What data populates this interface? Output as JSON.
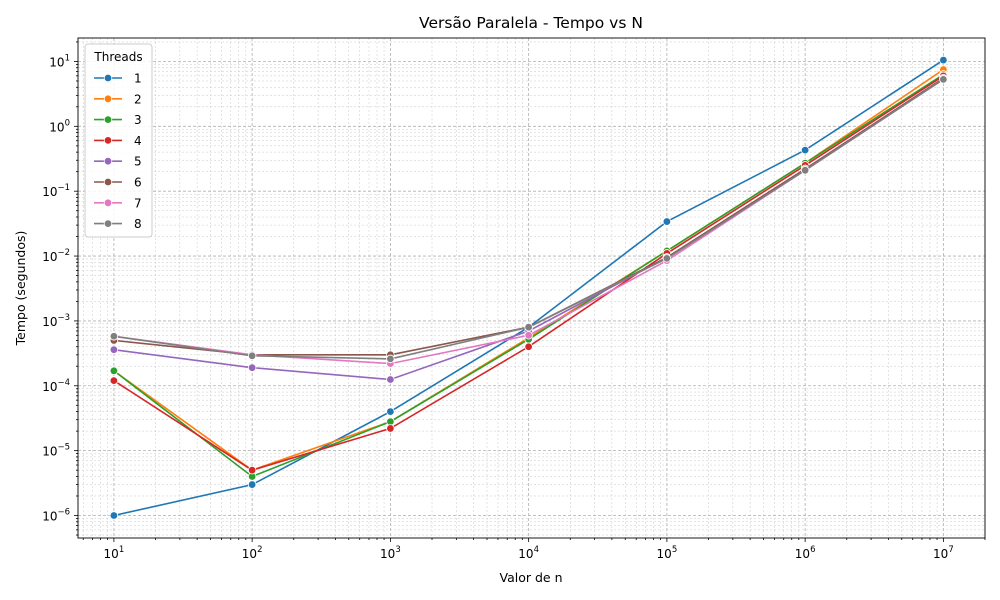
{
  "chart_data": {
    "type": "line",
    "title": "Versão Paralela - Tempo vs N",
    "xlabel": "Valor de n",
    "ylabel": "Tempo (segundos)",
    "xscale": "log",
    "yscale": "log",
    "x": [
      10,
      100,
      1000,
      10000,
      100000,
      1000000,
      10000000
    ],
    "xtick_labels": [
      {
        "base": "10",
        "exp": "1"
      },
      {
        "base": "10",
        "exp": "2"
      },
      {
        "base": "10",
        "exp": "3"
      },
      {
        "base": "10",
        "exp": "4"
      },
      {
        "base": "10",
        "exp": "5"
      },
      {
        "base": "10",
        "exp": "6"
      },
      {
        "base": "10",
        "exp": "7"
      }
    ],
    "ytick_labels": [
      {
        "base": "10",
        "exp": "−6"
      },
      {
        "base": "10",
        "exp": "−5"
      },
      {
        "base": "10",
        "exp": "−4"
      },
      {
        "base": "10",
        "exp": "−3"
      },
      {
        "base": "10",
        "exp": "−2"
      },
      {
        "base": "10",
        "exp": "−1"
      },
      {
        "base": "10",
        "exp": "0"
      },
      {
        "base": "10",
        "exp": "1"
      }
    ],
    "xlim": [
      5.5,
      20000000
    ],
    "ylim": [
      4.5e-07,
      23
    ],
    "grid": true,
    "legend_title": "Threads",
    "legend_position": "top-left",
    "series": [
      {
        "name": "1",
        "color": "#1f77b4",
        "values": [
          1e-06,
          3e-06,
          4e-05,
          0.0008,
          0.034,
          0.43,
          10.5
        ]
      },
      {
        "name": "2",
        "color": "#ff7f0e",
        "values": [
          0.00017,
          5e-06,
          2.8e-05,
          0.00055,
          0.012,
          0.27,
          7.5
        ]
      },
      {
        "name": "3",
        "color": "#2ca02c",
        "values": [
          0.00017,
          4e-06,
          2.8e-05,
          0.00052,
          0.012,
          0.27,
          6.3
        ]
      },
      {
        "name": "4",
        "color": "#d62728",
        "values": [
          0.00012,
          5e-06,
          2.2e-05,
          0.0004,
          0.011,
          0.25,
          6.0
        ]
      },
      {
        "name": "5",
        "color": "#9467bd",
        "values": [
          0.00036,
          0.00019,
          0.000125,
          0.0007,
          0.0095,
          0.22,
          5.5
        ]
      },
      {
        "name": "6",
        "color": "#8c564b",
        "values": [
          0.0005,
          0.0003,
          0.0003,
          0.0008,
          0.0095,
          0.22,
          5.5
        ]
      },
      {
        "name": "7",
        "color": "#e377c2",
        "values": [
          0.00058,
          0.0003,
          0.00022,
          0.0006,
          0.0085,
          0.21,
          5.3
        ]
      },
      {
        "name": "8",
        "color": "#7f7f7f",
        "values": [
          0.00058,
          0.00029,
          0.00026,
          0.0008,
          0.0092,
          0.21,
          5.3
        ]
      }
    ]
  }
}
